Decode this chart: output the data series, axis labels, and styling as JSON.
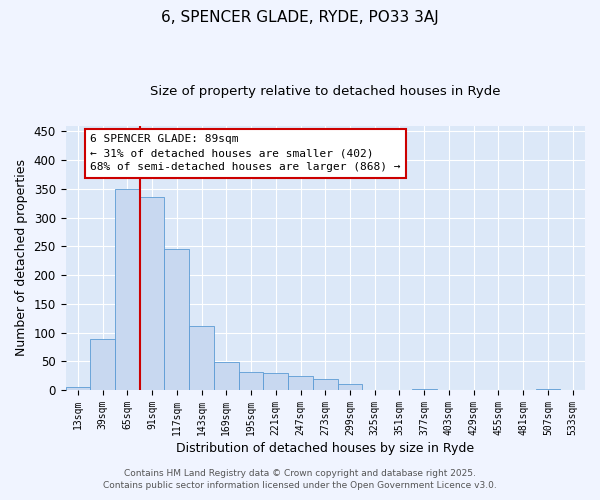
{
  "title": "6, SPENCER GLADE, RYDE, PO33 3AJ",
  "subtitle": "Size of property relative to detached houses in Ryde",
  "xlabel": "Distribution of detached houses by size in Ryde",
  "ylabel": "Number of detached properties",
  "bar_color": "#c8d8f0",
  "bar_edge_color": "#5b9bd5",
  "background_color": "#dce8f8",
  "grid_color": "#ffffff",
  "bins": [
    "13sqm",
    "39sqm",
    "65sqm",
    "91sqm",
    "117sqm",
    "143sqm",
    "169sqm",
    "195sqm",
    "221sqm",
    "247sqm",
    "273sqm",
    "299sqm",
    "325sqm",
    "351sqm",
    "377sqm",
    "403sqm",
    "429sqm",
    "455sqm",
    "481sqm",
    "507sqm",
    "533sqm"
  ],
  "values": [
    6,
    88,
    350,
    335,
    245,
    112,
    48,
    32,
    30,
    24,
    20,
    10,
    0,
    0,
    2,
    0,
    0,
    0,
    0,
    2,
    0
  ],
  "ylim": [
    0,
    460
  ],
  "yticks": [
    0,
    50,
    100,
    150,
    200,
    250,
    300,
    350,
    400,
    450
  ],
  "vline_x_index": 2,
  "annotation_line1": "6 SPENCER GLADE: 89sqm",
  "annotation_line2": "← 31% of detached houses are smaller (402)",
  "annotation_line3": "68% of semi-detached houses are larger (868) →",
  "annotation_box_color": "#ffffff",
  "annotation_box_edge": "#cc0000",
  "vline_color": "#cc0000",
  "footer1": "Contains HM Land Registry data © Crown copyright and database right 2025.",
  "footer2": "Contains public sector information licensed under the Open Government Licence v3.0."
}
